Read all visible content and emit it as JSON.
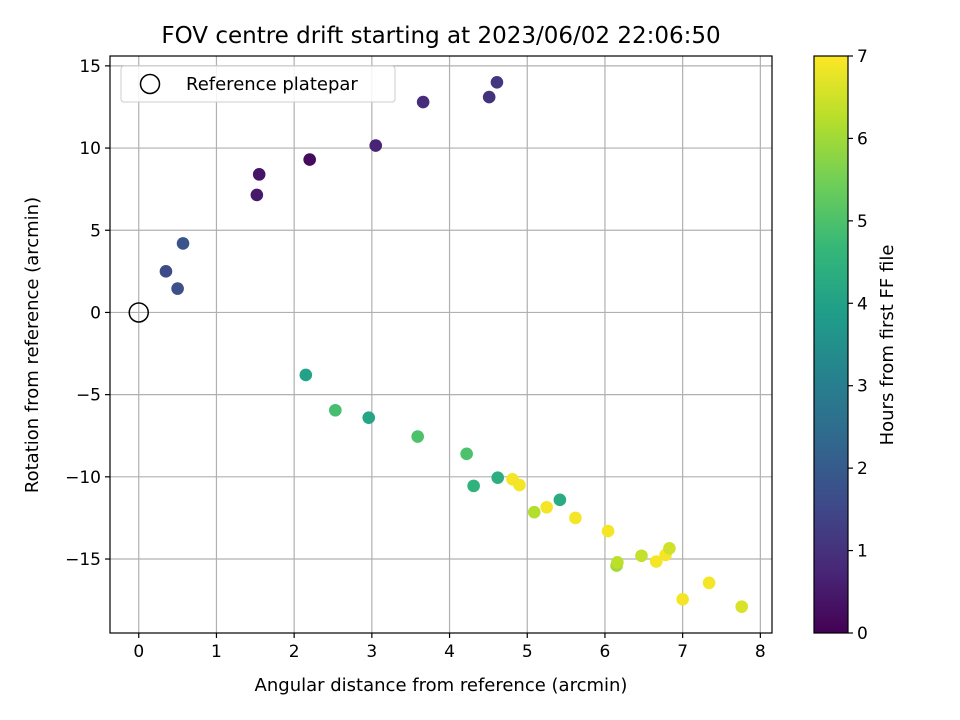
{
  "chart_data": {
    "type": "scatter",
    "title": "FOV centre drift starting at 2023/06/02 22:06:50",
    "xlabel": "Angular distance from reference (arcmin)",
    "ylabel": "Rotation from reference (arcmin)",
    "xlim": [
      -0.37,
      8.15
    ],
    "ylim": [
      -19.5,
      15.6
    ],
    "xticks": [
      0,
      1,
      2,
      3,
      4,
      5,
      6,
      7,
      8
    ],
    "yticks": [
      -15,
      -10,
      -5,
      0,
      5,
      10,
      15
    ],
    "xtick_labels": [
      "0",
      "1",
      "2",
      "3",
      "4",
      "5",
      "6",
      "7",
      "8"
    ],
    "ytick_labels": [
      "−15",
      "−10",
      "−5",
      "0",
      "5",
      "10",
      "15"
    ],
    "grid": true,
    "legend": {
      "placement": "top-left",
      "entries": [
        {
          "label": "Reference platepar",
          "marker": "open-circle"
        }
      ]
    },
    "reference_point": {
      "x": 0,
      "y": 0
    },
    "colorbar": {
      "label": "Hours from first FF file",
      "min": 0,
      "max": 7,
      "ticks": [
        0,
        1,
        2,
        3,
        4,
        5,
        6,
        7
      ],
      "tick_labels": [
        "0",
        "1",
        "2",
        "3",
        "4",
        "5",
        "6",
        "7"
      ],
      "colormap": "viridis",
      "stops": [
        "#440154",
        "#482878",
        "#3e4a89",
        "#31688e",
        "#26828e",
        "#1f9e89",
        "#35b779",
        "#6ece58",
        "#b5de2b",
        "#fde725"
      ]
    },
    "points": [
      {
        "x": 2.2,
        "y": 9.3,
        "hours": 0.2
      },
      {
        "x": 1.55,
        "y": 8.4,
        "hours": 0.4
      },
      {
        "x": 1.52,
        "y": 7.15,
        "hours": 0.5
      },
      {
        "x": 3.05,
        "y": 10.15,
        "hours": 0.7
      },
      {
        "x": 3.66,
        "y": 12.8,
        "hours": 0.9
      },
      {
        "x": 4.51,
        "y": 13.1,
        "hours": 1.0
      },
      {
        "x": 4.61,
        "y": 14.0,
        "hours": 1.1
      },
      {
        "x": 0.35,
        "y": 2.5,
        "hours": 1.6
      },
      {
        "x": 0.5,
        "y": 1.45,
        "hours": 1.7
      },
      {
        "x": 0.57,
        "y": 4.2,
        "hours": 1.8
      },
      {
        "x": 2.15,
        "y": -3.8,
        "hours": 4.0
      },
      {
        "x": 2.96,
        "y": -6.4,
        "hours": 4.1
      },
      {
        "x": 2.53,
        "y": -5.95,
        "hours": 4.9
      },
      {
        "x": 3.59,
        "y": -7.55,
        "hours": 5.0
      },
      {
        "x": 4.22,
        "y": -8.6,
        "hours": 5.0
      },
      {
        "x": 4.31,
        "y": -10.55,
        "hours": 4.5
      },
      {
        "x": 4.62,
        "y": -10.05,
        "hours": 4.4
      },
      {
        "x": 5.42,
        "y": -11.4,
        "hours": 4.3
      },
      {
        "x": 5.09,
        "y": -12.15,
        "hours": 6.2
      },
      {
        "x": 4.81,
        "y": -10.15,
        "hours": 6.9
      },
      {
        "x": 4.9,
        "y": -10.5,
        "hours": 6.9
      },
      {
        "x": 5.25,
        "y": -11.85,
        "hours": 6.9
      },
      {
        "x": 5.62,
        "y": -12.5,
        "hours": 6.9
      },
      {
        "x": 6.04,
        "y": -13.3,
        "hours": 6.9
      },
      {
        "x": 6.15,
        "y": -15.4,
        "hours": 6.0
      },
      {
        "x": 6.16,
        "y": -15.2,
        "hours": 6.3
      },
      {
        "x": 6.47,
        "y": -14.8,
        "hours": 6.4
      },
      {
        "x": 6.66,
        "y": -15.15,
        "hours": 6.9
      },
      {
        "x": 6.78,
        "y": -14.75,
        "hours": 6.9
      },
      {
        "x": 6.83,
        "y": -14.35,
        "hours": 6.5
      },
      {
        "x": 7.0,
        "y": -17.45,
        "hours": 6.9
      },
      {
        "x": 7.34,
        "y": -16.45,
        "hours": 6.9
      },
      {
        "x": 7.76,
        "y": -17.9,
        "hours": 6.6
      }
    ]
  }
}
